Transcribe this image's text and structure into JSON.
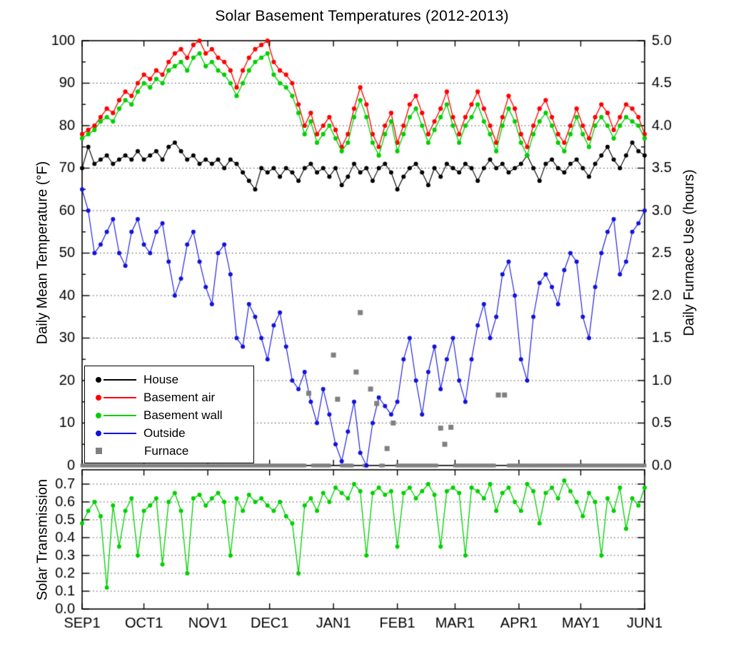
{
  "chart_data": {
    "type": "scatter-line",
    "title": "Solar Basement Temperatures (2012-2013)",
    "x_axis": {
      "tick_labels": [
        "SEP1",
        "OCT1",
        "NOV1",
        "DEC1",
        "JAN1",
        "FEB1",
        "MAR1",
        "APR1",
        "MAY1",
        "JUN1"
      ],
      "tick_days": [
        0,
        30,
        61,
        91,
        122,
        153,
        181,
        212,
        242,
        273
      ],
      "range_days": [
        0,
        273
      ]
    },
    "legend_position": "lower-left-of-top-panel",
    "grid": "dotted-horizontal",
    "panels": [
      {
        "name": "temperature-furnace",
        "left_axis": {
          "label": "Daily Mean Temperature (°F)",
          "ticks": [
            0,
            10,
            20,
            30,
            40,
            50,
            60,
            70,
            80,
            90,
            100
          ],
          "range": [
            0,
            100
          ]
        },
        "right_axis": {
          "label": "Daily Furnace Use (hours)",
          "ticks": [
            0,
            0.5,
            1,
            1.5,
            2,
            2.5,
            3,
            3.5,
            4,
            4.5,
            5
          ],
          "range": [
            0,
            5
          ]
        },
        "x_step_days": 3,
        "series": [
          {
            "name": "House",
            "axis": "left",
            "marker": "circle",
            "color": "#000000",
            "y": [
              70,
              75,
              71,
              72,
              73,
              71,
              72,
              73,
              72,
              74,
              72,
              73,
              74,
              72,
              75,
              76,
              74,
              72,
              73,
              71,
              72,
              71,
              72,
              70,
              72,
              71,
              69,
              67,
              65,
              70,
              69,
              70,
              68,
              70,
              69,
              67,
              70,
              71,
              69,
              70,
              68,
              70,
              66,
              68,
              71,
              69,
              70,
              67,
              70,
              71,
              69,
              65,
              68,
              70,
              71,
              69,
              66,
              70,
              68,
              71,
              70,
              69,
              71,
              70,
              67,
              70,
              72,
              70,
              71,
              69,
              70,
              71,
              73,
              70,
              67,
              71,
              72,
              70,
              69,
              71,
              72,
              70,
              68,
              71,
              73,
              75,
              72,
              70,
              73,
              76,
              74,
              73
            ]
          },
          {
            "name": "Basement air",
            "axis": "left",
            "marker": "circle",
            "color": "#ff0000",
            "y": [
              78,
              79,
              80,
              82,
              84,
              83,
              86,
              88,
              87,
              90,
              92,
              91,
              93,
              92,
              95,
              97,
              98,
              96,
              99,
              100,
              97,
              98,
              96,
              95,
              93,
              89,
              93,
              96,
              98,
              99,
              100,
              95,
              93,
              92,
              90,
              85,
              80,
              83,
              78,
              80,
              82,
              79,
              75,
              78,
              84,
              89,
              85,
              78,
              75,
              80,
              83,
              76,
              80,
              85,
              87,
              83,
              78,
              81,
              84,
              88,
              82,
              78,
              82,
              85,
              88,
              84,
              80,
              76,
              82,
              87,
              84,
              78,
              75,
              80,
              84,
              86,
              82,
              78,
              76,
              80,
              84,
              80,
              77,
              82,
              85,
              83,
              79,
              82,
              85,
              84,
              82,
              78
            ]
          },
          {
            "name": "Basement wall",
            "axis": "left",
            "marker": "circle",
            "color": "#00d000",
            "y": [
              77,
              78,
              79,
              81,
              82,
              81,
              84,
              86,
              85,
              88,
              90,
              89,
              91,
              90,
              93,
              94,
              95,
              93,
              96,
              97,
              94,
              95,
              93,
              92,
              90,
              87,
              90,
              93,
              95,
              96,
              97,
              92,
              90,
              89,
              87,
              83,
              78,
              81,
              76,
              78,
              80,
              77,
              74,
              76,
              82,
              86,
              82,
              76,
              73,
              78,
              81,
              74,
              78,
              82,
              84,
              80,
              76,
              79,
              82,
              85,
              80,
              76,
              80,
              82,
              85,
              81,
              78,
              74,
              80,
              84,
              81,
              76,
              73,
              78,
              81,
              83,
              80,
              76,
              74,
              78,
              82,
              78,
              75,
              80,
              82,
              80,
              77,
              80,
              82,
              81,
              80,
              77
            ]
          },
          {
            "name": "Outside",
            "axis": "left",
            "marker": "circle",
            "color": "#1212dd",
            "y": [
              65,
              60,
              50,
              52,
              55,
              58,
              50,
              47,
              55,
              58,
              52,
              50,
              55,
              57,
              48,
              40,
              44,
              52,
              55,
              48,
              42,
              38,
              50,
              52,
              45,
              30,
              28,
              38,
              35,
              30,
              25,
              33,
              36,
              28,
              20,
              18,
              22,
              15,
              10,
              18,
              12,
              5,
              1,
              8,
              15,
              3,
              0,
              10,
              16,
              14,
              12,
              15,
              25,
              30,
              20,
              12,
              22,
              28,
              18,
              25,
              30,
              20,
              15,
              25,
              33,
              38,
              30,
              35,
              45,
              48,
              40,
              25,
              20,
              35,
              43,
              45,
              42,
              38,
              46,
              50,
              48,
              35,
              30,
              42,
              50,
              55,
              58,
              45,
              48,
              55,
              57,
              60
            ]
          },
          {
            "name": "Furnace",
            "axis": "right",
            "marker": "square",
            "color": "#808080",
            "zero_on_all_other_days": true,
            "points": [
              [
                110,
                0.85
              ],
              [
                122,
                1.3
              ],
              [
                124,
                0.78
              ],
              [
                133,
                1.1
              ],
              [
                135,
                1.8
              ],
              [
                140,
                0.9
              ],
              [
                143,
                0.73
              ],
              [
                148,
                0.2
              ],
              [
                151,
                0.5
              ],
              [
                174,
                0.44
              ],
              [
                176,
                0.25
              ],
              [
                179,
                0.45
              ],
              [
                202,
                0.83
              ],
              [
                205,
                0.83
              ]
            ]
          }
        ]
      },
      {
        "name": "solar-transmission",
        "left_axis": {
          "label": "Solar Transmission",
          "ticks": [
            0,
            0.1,
            0.2,
            0.3,
            0.4,
            0.5,
            0.6,
            0.7
          ],
          "range": [
            0,
            0.78
          ]
        },
        "x_step_days": 3,
        "series": [
          {
            "name": "Solar transmission",
            "axis": "left",
            "marker": "circle",
            "color": "#00d000",
            "y": [
              0.48,
              0.55,
              0.6,
              0.52,
              0.12,
              0.58,
              0.35,
              0.55,
              0.62,
              0.3,
              0.55,
              0.58,
              0.62,
              0.25,
              0.6,
              0.65,
              0.55,
              0.2,
              0.62,
              0.64,
              0.58,
              0.62,
              0.65,
              0.6,
              0.3,
              0.62,
              0.55,
              0.64,
              0.6,
              0.62,
              0.58,
              0.55,
              0.6,
              0.52,
              0.48,
              0.2,
              0.58,
              0.62,
              0.55,
              0.65,
              0.6,
              0.68,
              0.65,
              0.62,
              0.7,
              0.66,
              0.3,
              0.65,
              0.68,
              0.64,
              0.66,
              0.35,
              0.65,
              0.68,
              0.62,
              0.66,
              0.7,
              0.64,
              0.35,
              0.66,
              0.68,
              0.65,
              0.3,
              0.68,
              0.66,
              0.62,
              0.7,
              0.55,
              0.65,
              0.68,
              0.6,
              0.55,
              0.7,
              0.66,
              0.48,
              0.65,
              0.68,
              0.62,
              0.72,
              0.66,
              0.6,
              0.52,
              0.65,
              0.6,
              0.3,
              0.62,
              0.55,
              0.68,
              0.45,
              0.62,
              0.58,
              0.68
            ]
          }
        ]
      }
    ]
  },
  "legend": {
    "items": [
      {
        "label": "House"
      },
      {
        "label": "Basement air"
      },
      {
        "label": "Basement wall"
      },
      {
        "label": "Outside"
      },
      {
        "label": "Furnace"
      }
    ]
  }
}
